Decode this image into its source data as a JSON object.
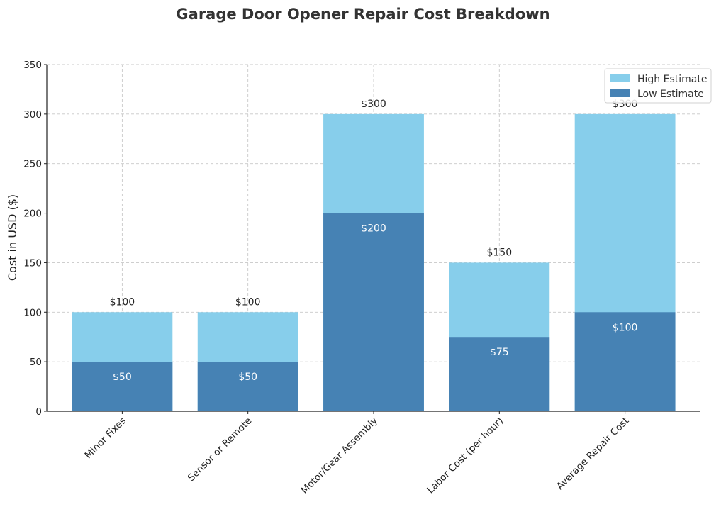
{
  "chart_data": {
    "type": "bar",
    "stacked": "overlay",
    "title": "Garage Door Opener Repair Cost Breakdown",
    "xlabel": "",
    "ylabel": "Cost in USD ($)",
    "ylim": [
      0,
      350
    ],
    "yticks": [
      0,
      50,
      100,
      150,
      200,
      250,
      300,
      350
    ],
    "grid": true,
    "legend_position": "top-right",
    "categories": [
      "Minor Fixes",
      "Sensor or Remote",
      "Motor/Gear Assembly",
      "Labor Cost (per hour)",
      "Average Repair Cost"
    ],
    "series": [
      {
        "name": "High Estimate",
        "color": "#87ceeb",
        "values": [
          100,
          100,
          300,
          150,
          300
        ],
        "labels": [
          "$100",
          "$100",
          "$300",
          "$150",
          "$300"
        ]
      },
      {
        "name": "Low Estimate",
        "color": "#4682b4",
        "values": [
          50,
          50,
          200,
          75,
          100
        ],
        "labels": [
          "$50",
          "$50",
          "$200",
          "$75",
          "$100"
        ]
      }
    ]
  }
}
